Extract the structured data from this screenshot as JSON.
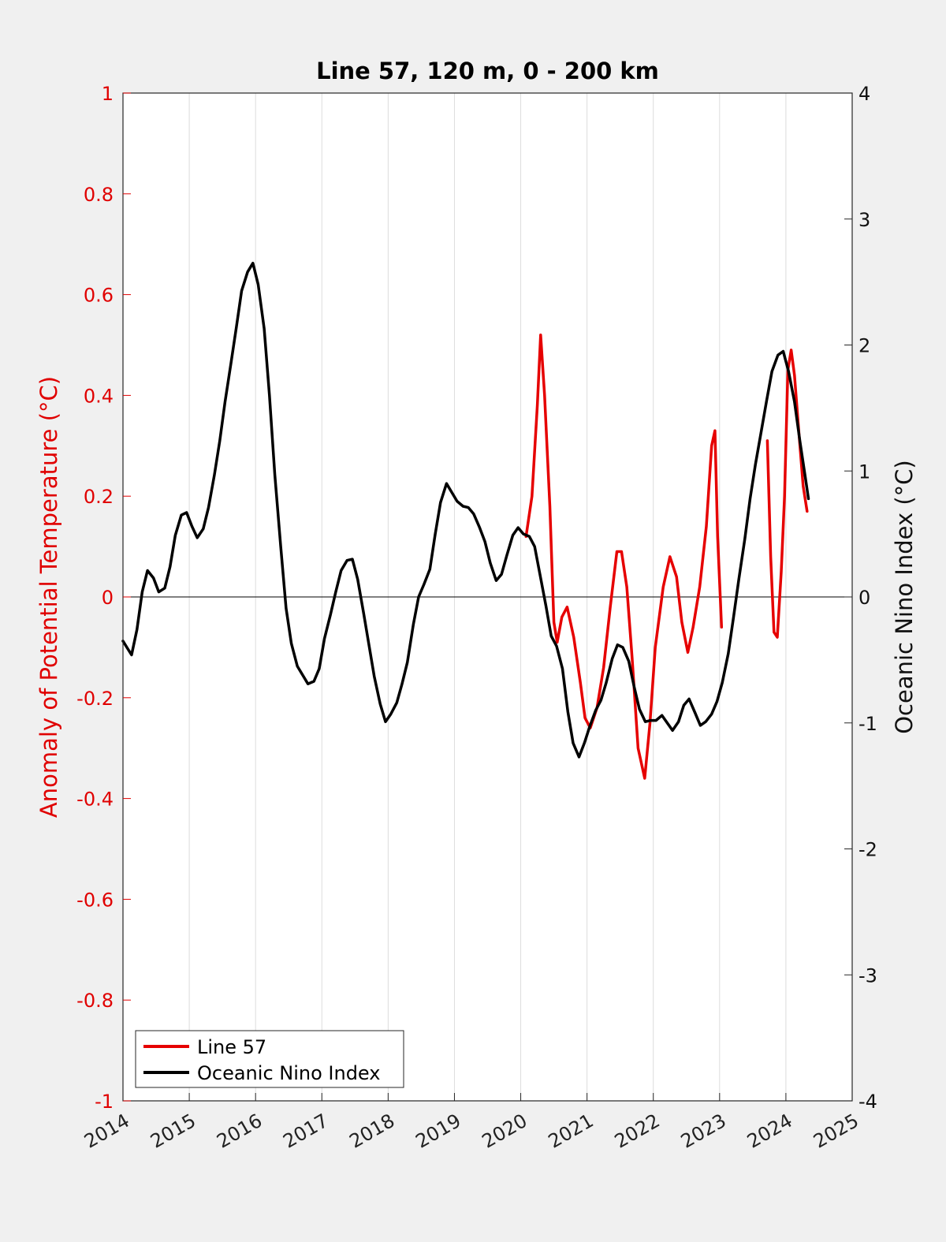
{
  "chart_data": {
    "type": "line",
    "title": "Line 57, 120 m, 0 - 200 km",
    "ylabel_left": "Anomaly of Potential Temperature (°C)",
    "ylabel_right": "Oceanic Nino Index (°C)",
    "xlim": [
      2014,
      2025
    ],
    "ylim_left": [
      -1,
      1
    ],
    "ylim_right": [
      -4,
      4
    ],
    "x_ticks": [
      "2014",
      "2015",
      "2016",
      "2017",
      "2018",
      "2019",
      "2020",
      "2021",
      "2022",
      "2023",
      "2024",
      "2025"
    ],
    "y_left_ticks": [
      "1",
      "0.8",
      "0.6",
      "0.4",
      "0.2",
      "0",
      "-0.2",
      "-0.4",
      "-0.6",
      "-0.8",
      "-1"
    ],
    "y_right_ticks": [
      "4",
      "3",
      "2",
      "1",
      "0",
      "-1",
      "-2",
      "-3",
      "-4"
    ],
    "grid": "vertical",
    "zero_line": true,
    "legend_position": "bottom-left",
    "colors": {
      "line57": "#e60000",
      "oni": "#000000",
      "left_axis": "#e00000"
    },
    "series": [
      {
        "name": "Line 57",
        "axis": "left",
        "segments": [
          [
            [
              2020.08,
              0.12
            ],
            [
              2020.17,
              0.2
            ],
            [
              2020.25,
              0.38
            ],
            [
              2020.3,
              0.52
            ],
            [
              2020.36,
              0.4
            ],
            [
              2020.44,
              0.18
            ],
            [
              2020.5,
              -0.05
            ],
            [
              2020.55,
              -0.09
            ],
            [
              2020.62,
              -0.04
            ],
            [
              2020.7,
              -0.02
            ],
            [
              2020.8,
              -0.08
            ],
            [
              2020.9,
              -0.17
            ],
            [
              2020.97,
              -0.24
            ],
            [
              2021.05,
              -0.26
            ],
            [
              2021.15,
              -0.22
            ],
            [
              2021.25,
              -0.14
            ],
            [
              2021.35,
              -0.02
            ],
            [
              2021.45,
              0.09
            ],
            [
              2021.52,
              0.09
            ],
            [
              2021.6,
              0.02
            ],
            [
              2021.68,
              -0.12
            ],
            [
              2021.77,
              -0.3
            ],
            [
              2021.87,
              -0.36
            ],
            [
              2021.95,
              -0.25
            ],
            [
              2022.03,
              -0.1
            ],
            [
              2022.15,
              0.02
            ],
            [
              2022.25,
              0.08
            ],
            [
              2022.35,
              0.04
            ],
            [
              2022.43,
              -0.05
            ],
            [
              2022.52,
              -0.11
            ],
            [
              2022.6,
              -0.06
            ],
            [
              2022.7,
              0.02
            ],
            [
              2022.8,
              0.14
            ],
            [
              2022.88,
              0.3
            ],
            [
              2022.93,
              0.33
            ],
            [
              2022.97,
              0.12
            ],
            [
              2023.03,
              -0.06
            ]
          ],
          [
            [
              2023.72,
              0.31
            ],
            [
              2023.77,
              0.08
            ],
            [
              2023.82,
              -0.07
            ],
            [
              2023.87,
              -0.08
            ],
            [
              2023.93,
              0.05
            ],
            [
              2023.98,
              0.2
            ],
            [
              2024.03,
              0.45
            ],
            [
              2024.08,
              0.49
            ],
            [
              2024.13,
              0.44
            ],
            [
              2024.2,
              0.32
            ],
            [
              2024.26,
              0.22
            ],
            [
              2024.32,
              0.17
            ]
          ]
        ]
      },
      {
        "name": "Oceanic Nino Index",
        "axis": "right",
        "points": [
          [
            2014.0,
            -0.35
          ],
          [
            2014.07,
            -0.41
          ],
          [
            2014.13,
            -0.46
          ],
          [
            2014.21,
            -0.26
          ],
          [
            2014.29,
            0.04
          ],
          [
            2014.37,
            0.21
          ],
          [
            2014.46,
            0.15
          ],
          [
            2014.54,
            0.04
          ],
          [
            2014.63,
            0.07
          ],
          [
            2014.71,
            0.24
          ],
          [
            2014.79,
            0.49
          ],
          [
            2014.88,
            0.65
          ],
          [
            2014.96,
            0.67
          ],
          [
            2015.04,
            0.56
          ],
          [
            2015.12,
            0.47
          ],
          [
            2015.21,
            0.54
          ],
          [
            2015.29,
            0.71
          ],
          [
            2015.38,
            0.97
          ],
          [
            2015.46,
            1.24
          ],
          [
            2015.54,
            1.55
          ],
          [
            2015.63,
            1.86
          ],
          [
            2015.71,
            2.14
          ],
          [
            2015.79,
            2.43
          ],
          [
            2015.88,
            2.58
          ],
          [
            2015.96,
            2.65
          ],
          [
            2016.04,
            2.48
          ],
          [
            2016.13,
            2.13
          ],
          [
            2016.21,
            1.6
          ],
          [
            2016.29,
            0.97
          ],
          [
            2016.38,
            0.4
          ],
          [
            2016.46,
            -0.09
          ],
          [
            2016.54,
            -0.37
          ],
          [
            2016.63,
            -0.55
          ],
          [
            2016.71,
            -0.62
          ],
          [
            2016.79,
            -0.69
          ],
          [
            2016.88,
            -0.67
          ],
          [
            2016.96,
            -0.57
          ],
          [
            2017.04,
            -0.33
          ],
          [
            2017.13,
            -0.14
          ],
          [
            2017.21,
            0.04
          ],
          [
            2017.29,
            0.21
          ],
          [
            2017.38,
            0.29
          ],
          [
            2017.46,
            0.3
          ],
          [
            2017.54,
            0.14
          ],
          [
            2017.63,
            -0.13
          ],
          [
            2017.71,
            -0.38
          ],
          [
            2017.79,
            -0.63
          ],
          [
            2017.88,
            -0.85
          ],
          [
            2017.96,
            -0.99
          ],
          [
            2018.04,
            -0.93
          ],
          [
            2018.13,
            -0.84
          ],
          [
            2018.21,
            -0.69
          ],
          [
            2018.29,
            -0.52
          ],
          [
            2018.38,
            -0.22
          ],
          [
            2018.46,
            0.0
          ],
          [
            2018.54,
            0.1
          ],
          [
            2018.63,
            0.22
          ],
          [
            2018.71,
            0.5
          ],
          [
            2018.79,
            0.75
          ],
          [
            2018.88,
            0.9
          ],
          [
            2018.96,
            0.83
          ],
          [
            2019.04,
            0.76
          ],
          [
            2019.13,
            0.72
          ],
          [
            2019.21,
            0.71
          ],
          [
            2019.29,
            0.66
          ],
          [
            2019.38,
            0.55
          ],
          [
            2019.46,
            0.44
          ],
          [
            2019.54,
            0.27
          ],
          [
            2019.63,
            0.13
          ],
          [
            2019.71,
            0.18
          ],
          [
            2019.79,
            0.33
          ],
          [
            2019.88,
            0.49
          ],
          [
            2019.96,
            0.55
          ],
          [
            2020.04,
            0.5
          ],
          [
            2020.13,
            0.48
          ],
          [
            2020.21,
            0.4
          ],
          [
            2020.29,
            0.18
          ],
          [
            2020.38,
            -0.07
          ],
          [
            2020.46,
            -0.31
          ],
          [
            2020.54,
            -0.39
          ],
          [
            2020.63,
            -0.57
          ],
          [
            2020.71,
            -0.91
          ],
          [
            2020.79,
            -1.16
          ],
          [
            2020.88,
            -1.27
          ],
          [
            2020.96,
            -1.16
          ],
          [
            2021.04,
            -1.03
          ],
          [
            2021.13,
            -0.9
          ],
          [
            2021.21,
            -0.82
          ],
          [
            2021.29,
            -0.68
          ],
          [
            2021.38,
            -0.49
          ],
          [
            2021.46,
            -0.38
          ],
          [
            2021.54,
            -0.4
          ],
          [
            2021.63,
            -0.51
          ],
          [
            2021.71,
            -0.71
          ],
          [
            2021.79,
            -0.89
          ],
          [
            2021.88,
            -0.99
          ],
          [
            2021.96,
            -0.98
          ],
          [
            2022.04,
            -0.98
          ],
          [
            2022.13,
            -0.94
          ],
          [
            2022.21,
            -1.0
          ],
          [
            2022.29,
            -1.06
          ],
          [
            2022.38,
            -0.99
          ],
          [
            2022.46,
            -0.86
          ],
          [
            2022.54,
            -0.81
          ],
          [
            2022.63,
            -0.92
          ],
          [
            2022.71,
            -1.02
          ],
          [
            2022.79,
            -0.99
          ],
          [
            2022.88,
            -0.93
          ],
          [
            2022.96,
            -0.83
          ],
          [
            2023.04,
            -0.68
          ],
          [
            2023.13,
            -0.45
          ],
          [
            2023.21,
            -0.16
          ],
          [
            2023.29,
            0.14
          ],
          [
            2023.38,
            0.46
          ],
          [
            2023.46,
            0.78
          ],
          [
            2023.54,
            1.05
          ],
          [
            2023.63,
            1.32
          ],
          [
            2023.71,
            1.56
          ],
          [
            2023.79,
            1.79
          ],
          [
            2023.88,
            1.92
          ],
          [
            2023.96,
            1.95
          ],
          [
            2024.04,
            1.79
          ],
          [
            2024.13,
            1.55
          ],
          [
            2024.21,
            1.24
          ],
          [
            2024.29,
            0.96
          ],
          [
            2024.34,
            0.78
          ]
        ]
      }
    ]
  }
}
